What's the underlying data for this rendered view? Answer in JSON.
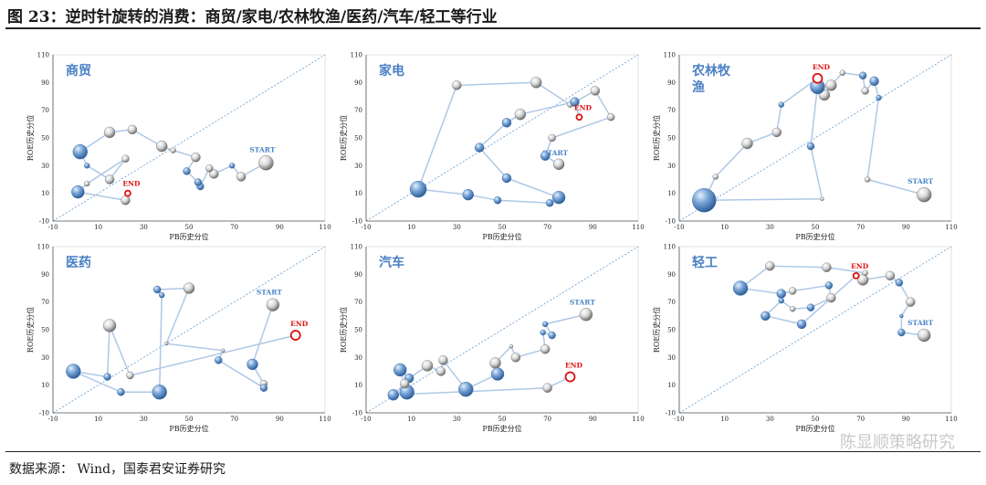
{
  "header": {
    "title": "图 23：逆时针旋转的消费：商贸/家电/农林牧渔/医药/汽车/轻工等行业"
  },
  "footer": {
    "source": "数据来源：   Wind，国泰君安证券研究",
    "watermark": "陈显顺策略研究"
  },
  "colors": {
    "blue_bubble": "#4f81bd",
    "gray_bubble": "#bfbfbf",
    "path": "#aec8e6",
    "diagonal": "#5b9bd5",
    "start_label": "#4a86c8",
    "end_label": "#dd1111"
  },
  "axes": {
    "x_label": "PB历史分位",
    "y_label": "ROE历史分位",
    "x_ticks": [
      "-10",
      "10",
      "30",
      "50",
      "70",
      "90",
      "110"
    ],
    "y_ticks": [
      "110",
      "90",
      "70",
      "50",
      "30",
      "10",
      "-10"
    ],
    "xlim": [
      -10,
      110
    ],
    "ylim": [
      -10,
      110
    ]
  },
  "labels": {
    "start": "START",
    "end": "END"
  },
  "chart_data": [
    {
      "type": "scatter",
      "title": "商贸",
      "points": [
        {
          "x": 84,
          "y": 32,
          "size": 8,
          "tone": "gray",
          "tag": "start"
        },
        {
          "x": 73,
          "y": 22,
          "size": 5,
          "tone": "gray"
        },
        {
          "x": 69,
          "y": 30,
          "size": 3,
          "tone": "blue"
        },
        {
          "x": 61,
          "y": 24,
          "size": 5,
          "tone": "gray"
        },
        {
          "x": 59,
          "y": 28,
          "size": 4,
          "tone": "gray"
        },
        {
          "x": 55,
          "y": 15,
          "size": 4,
          "tone": "blue"
        },
        {
          "x": 54,
          "y": 18,
          "size": 4,
          "tone": "blue"
        },
        {
          "x": 49,
          "y": 26,
          "size": 4,
          "tone": "blue"
        },
        {
          "x": 53,
          "y": 36,
          "size": 5,
          "tone": "gray"
        },
        {
          "x": 43,
          "y": 41,
          "size": 3,
          "tone": "gray"
        },
        {
          "x": 38,
          "y": 44,
          "size": 6,
          "tone": "gray"
        },
        {
          "x": 25,
          "y": 56,
          "size": 5,
          "tone": "gray"
        },
        {
          "x": 15,
          "y": 54,
          "size": 6,
          "tone": "gray"
        },
        {
          "x": 2,
          "y": 40,
          "size": 8,
          "tone": "blue"
        },
        {
          "x": 5,
          "y": 30,
          "size": 3,
          "tone": "blue"
        },
        {
          "x": 15,
          "y": 20,
          "size": 5,
          "tone": "gray"
        },
        {
          "x": 22,
          "y": 35,
          "size": 4,
          "tone": "gray"
        },
        {
          "x": 5,
          "y": 17,
          "size": 3,
          "tone": "gray"
        },
        {
          "x": 1,
          "y": 11,
          "size": 7,
          "tone": "blue"
        },
        {
          "x": 22,
          "y": 5,
          "size": 5,
          "tone": "gray"
        },
        {
          "x": 23,
          "y": 10,
          "size": 3,
          "tone": "red",
          "tag": "end"
        }
      ]
    },
    {
      "type": "scatter",
      "title": "家电",
      "points": [
        {
          "x": 75,
          "y": 31,
          "size": 6,
          "tone": "gray",
          "tag": "start"
        },
        {
          "x": 69,
          "y": 37,
          "size": 5,
          "tone": "blue"
        },
        {
          "x": 72,
          "y": 50,
          "size": 4,
          "tone": "gray"
        },
        {
          "x": 98,
          "y": 65,
          "size": 4,
          "tone": "gray"
        },
        {
          "x": 91,
          "y": 84,
          "size": 5,
          "tone": "gray"
        },
        {
          "x": 80,
          "y": 74,
          "size": 3,
          "tone": "gray"
        },
        {
          "x": 65,
          "y": 90,
          "size": 6,
          "tone": "gray"
        },
        {
          "x": 30,
          "y": 88,
          "size": 5,
          "tone": "gray"
        },
        {
          "x": 13,
          "y": 13,
          "size": 9,
          "tone": "blue"
        },
        {
          "x": 35,
          "y": 9,
          "size": 6,
          "tone": "blue"
        },
        {
          "x": 48,
          "y": 5,
          "size": 4,
          "tone": "blue"
        },
        {
          "x": 71,
          "y": 3,
          "size": 4,
          "tone": "blue"
        },
        {
          "x": 75,
          "y": 7,
          "size": 7,
          "tone": "blue"
        },
        {
          "x": 52,
          "y": 21,
          "size": 5,
          "tone": "blue"
        },
        {
          "x": 40,
          "y": 43,
          "size": 5,
          "tone": "blue"
        },
        {
          "x": 52,
          "y": 61,
          "size": 5,
          "tone": "blue"
        },
        {
          "x": 58,
          "y": 67,
          "size": 6,
          "tone": "gray"
        },
        {
          "x": 82,
          "y": 76,
          "size": 5,
          "tone": "blue"
        },
        {
          "x": 84,
          "y": 65,
          "size": 3,
          "tone": "red",
          "tag": "end"
        }
      ]
    },
    {
      "type": "scatter",
      "title": "农林牧渔",
      "points": [
        {
          "x": 98,
          "y": 9,
          "size": 8,
          "tone": "gray",
          "tag": "start"
        },
        {
          "x": 73,
          "y": 20,
          "size": 3,
          "tone": "gray"
        },
        {
          "x": 78,
          "y": 79,
          "size": 3,
          "tone": "blue"
        },
        {
          "x": 76,
          "y": 91,
          "size": 5,
          "tone": "blue"
        },
        {
          "x": 72,
          "y": 84,
          "size": 4,
          "tone": "gray"
        },
        {
          "x": 71,
          "y": 95,
          "size": 4,
          "tone": "blue"
        },
        {
          "x": 62,
          "y": 97,
          "size": 3,
          "tone": "gray"
        },
        {
          "x": 57,
          "y": 88,
          "size": 6,
          "tone": "gray"
        },
        {
          "x": 54,
          "y": 81,
          "size": 6,
          "tone": "gray"
        },
        {
          "x": 51,
          "y": 87,
          "size": 8,
          "tone": "blue"
        },
        {
          "x": 48,
          "y": 44,
          "size": 4,
          "tone": "blue"
        },
        {
          "x": 53,
          "y": 6,
          "size": 2,
          "tone": "gray"
        },
        {
          "x": 1,
          "y": 5,
          "size": 13,
          "tone": "blue"
        },
        {
          "x": 6,
          "y": 22,
          "size": 3,
          "tone": "gray"
        },
        {
          "x": 20,
          "y": 46,
          "size": 6,
          "tone": "gray"
        },
        {
          "x": 33,
          "y": 54,
          "size": 5,
          "tone": "gray"
        },
        {
          "x": 35,
          "y": 74,
          "size": 3,
          "tone": "blue"
        },
        {
          "x": 51,
          "y": 93,
          "size": 5,
          "tone": "red",
          "tag": "end"
        }
      ]
    },
    {
      "type": "scatter",
      "title": "医药",
      "points": [
        {
          "x": 87,
          "y": 68,
          "size": 7,
          "tone": "gray",
          "tag": "start"
        },
        {
          "x": 78,
          "y": 25,
          "size": 6,
          "tone": "blue"
        },
        {
          "x": 83,
          "y": 11,
          "size": 4,
          "tone": "gray"
        },
        {
          "x": 83,
          "y": 8,
          "size": 4,
          "tone": "blue"
        },
        {
          "x": 63,
          "y": 28,
          "size": 4,
          "tone": "blue"
        },
        {
          "x": 65,
          "y": 35,
          "size": 2,
          "tone": "gray"
        },
        {
          "x": 40,
          "y": 40,
          "size": 2,
          "tone": "gray"
        },
        {
          "x": 50,
          "y": 80,
          "size": 6,
          "tone": "gray"
        },
        {
          "x": 36,
          "y": 79,
          "size": 4,
          "tone": "blue"
        },
        {
          "x": 38,
          "y": 75,
          "size": 3,
          "tone": "blue"
        },
        {
          "x": 37,
          "y": 5,
          "size": 8,
          "tone": "blue"
        },
        {
          "x": 20,
          "y": 5,
          "size": 4,
          "tone": "blue"
        },
        {
          "x": -1,
          "y": 20,
          "size": 8,
          "tone": "blue"
        },
        {
          "x": 14,
          "y": 16,
          "size": 4,
          "tone": "blue"
        },
        {
          "x": 15,
          "y": 53,
          "size": 7,
          "tone": "gray"
        },
        {
          "x": 24,
          "y": 17,
          "size": 4,
          "tone": "gray"
        },
        {
          "x": 97,
          "y": 46,
          "size": 5,
          "tone": "red",
          "tag": "end"
        }
      ]
    },
    {
      "type": "scatter",
      "title": "汽车",
      "points": [
        {
          "x": 87,
          "y": 61,
          "size": 7,
          "tone": "gray",
          "tag": "start"
        },
        {
          "x": 69,
          "y": 54,
          "size": 3,
          "tone": "blue"
        },
        {
          "x": 72,
          "y": 46,
          "size": 4,
          "tone": "blue"
        },
        {
          "x": 68,
          "y": 48,
          "size": 3,
          "tone": "blue"
        },
        {
          "x": 69,
          "y": 36,
          "size": 5,
          "tone": "gray"
        },
        {
          "x": 56,
          "y": 30,
          "size": 5,
          "tone": "gray"
        },
        {
          "x": 54,
          "y": 38,
          "size": 2,
          "tone": "gray"
        },
        {
          "x": 47,
          "y": 26,
          "size": 6,
          "tone": "gray"
        },
        {
          "x": 48,
          "y": 18,
          "size": 7,
          "tone": "blue"
        },
        {
          "x": 34,
          "y": 7,
          "size": 8,
          "tone": "blue"
        },
        {
          "x": 24,
          "y": 28,
          "size": 5,
          "tone": "gray"
        },
        {
          "x": 23,
          "y": 20,
          "size": 5,
          "tone": "gray"
        },
        {
          "x": 17,
          "y": 24,
          "size": 6,
          "tone": "gray"
        },
        {
          "x": 9,
          "y": 15,
          "size": 5,
          "tone": "blue"
        },
        {
          "x": 5,
          "y": 21,
          "size": 7,
          "tone": "blue"
        },
        {
          "x": 8,
          "y": 5,
          "size": 8,
          "tone": "blue"
        },
        {
          "x": 7,
          "y": 11,
          "size": 5,
          "tone": "gray"
        },
        {
          "x": 2,
          "y": 3,
          "size": 6,
          "tone": "blue"
        },
        {
          "x": 70,
          "y": 8,
          "size": 5,
          "tone": "gray"
        },
        {
          "x": 80,
          "y": 16,
          "size": 5,
          "tone": "red",
          "tag": "end"
        }
      ]
    },
    {
      "type": "scatter",
      "title": "轻工",
      "points": [
        {
          "x": 98,
          "y": 46,
          "size": 7,
          "tone": "gray",
          "tag": "start"
        },
        {
          "x": 88,
          "y": 48,
          "size": 3,
          "tone": "gray"
        },
        {
          "x": 88,
          "y": 48,
          "size": 4,
          "tone": "blue"
        },
        {
          "x": 88,
          "y": 60,
          "size": 2,
          "tone": "blue"
        },
        {
          "x": 92,
          "y": 70,
          "size": 5,
          "tone": "gray"
        },
        {
          "x": 87,
          "y": 84,
          "size": 4,
          "tone": "blue"
        },
        {
          "x": 83,
          "y": 89,
          "size": 5,
          "tone": "gray"
        },
        {
          "x": 71,
          "y": 86,
          "size": 6,
          "tone": "gray"
        },
        {
          "x": 72,
          "y": 91,
          "size": 3,
          "tone": "gray"
        },
        {
          "x": 55,
          "y": 95,
          "size": 5,
          "tone": "gray"
        },
        {
          "x": 30,
          "y": 96,
          "size": 5,
          "tone": "gray"
        },
        {
          "x": 17,
          "y": 80,
          "size": 8,
          "tone": "blue"
        },
        {
          "x": 35,
          "y": 76,
          "size": 5,
          "tone": "blue"
        },
        {
          "x": 40,
          "y": 78,
          "size": 4,
          "tone": "gray"
        },
        {
          "x": 56,
          "y": 82,
          "size": 4,
          "tone": "blue"
        },
        {
          "x": 57,
          "y": 73,
          "size": 5,
          "tone": "gray"
        },
        {
          "x": 48,
          "y": 66,
          "size": 4,
          "tone": "blue"
        },
        {
          "x": 40,
          "y": 65,
          "size": 3,
          "tone": "gray"
        },
        {
          "x": 35,
          "y": 71,
          "size": 3,
          "tone": "blue"
        },
        {
          "x": 28,
          "y": 60,
          "size": 5,
          "tone": "blue"
        },
        {
          "x": 44,
          "y": 54,
          "size": 5,
          "tone": "blue"
        },
        {
          "x": 68,
          "y": 89,
          "size": 3,
          "tone": "red",
          "tag": "end"
        }
      ]
    }
  ]
}
